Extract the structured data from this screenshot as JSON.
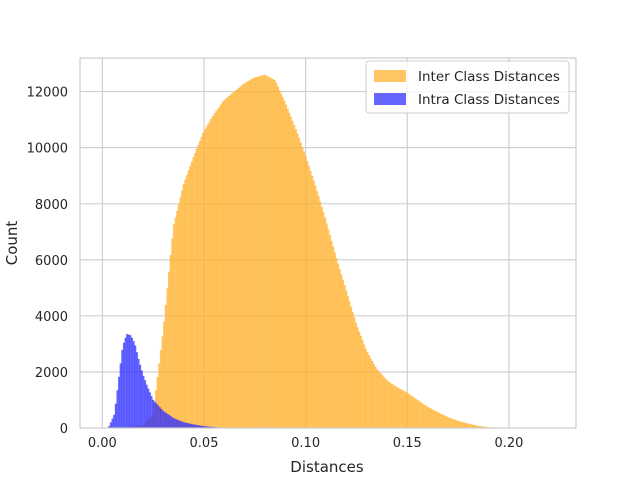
{
  "chart_data": {
    "type": "bar",
    "title": "",
    "xlabel": "Distances",
    "ylabel": "Count",
    "xlim": [
      -0.011,
      0.233
    ],
    "ylim": [
      0,
      13200
    ],
    "xticks": [
      0.0,
      0.05,
      0.1,
      0.15,
      0.2
    ],
    "xtick_labels": [
      "0.00",
      "0.05",
      "0.10",
      "0.15",
      "0.20"
    ],
    "yticks": [
      0,
      2000,
      4000,
      6000,
      8000,
      10000,
      12000
    ],
    "ytick_labels": [
      "0",
      "2000",
      "4000",
      "6000",
      "8000",
      "10000",
      "12000"
    ],
    "grid": true,
    "legend_position": "top-right",
    "series": [
      {
        "name": "Inter Class Distances",
        "color": "#FFB22E",
        "x": [
          0.01,
          0.02,
          0.025,
          0.03,
          0.035,
          0.04,
          0.045,
          0.05,
          0.055,
          0.06,
          0.065,
          0.07,
          0.075,
          0.08,
          0.085,
          0.09,
          0.095,
          0.1,
          0.105,
          0.11,
          0.115,
          0.12,
          0.125,
          0.13,
          0.135,
          0.14,
          0.145,
          0.15,
          0.155,
          0.16,
          0.165,
          0.17,
          0.175,
          0.18,
          0.185,
          0.19,
          0.195
        ],
        "y": [
          0,
          100,
          500,
          3500,
          7200,
          8700,
          9700,
          10600,
          11200,
          11700,
          12000,
          12300,
          12500,
          12600,
          12400,
          11600,
          10700,
          9700,
          8600,
          7400,
          6100,
          4900,
          3700,
          2750,
          2100,
          1700,
          1450,
          1250,
          1000,
          750,
          560,
          380,
          250,
          150,
          70,
          20,
          0
        ]
      },
      {
        "name": "Intra Class Distances",
        "color": "#3333FF",
        "x": [
          0.003,
          0.006,
          0.008,
          0.01,
          0.012,
          0.014,
          0.016,
          0.018,
          0.02,
          0.022,
          0.025,
          0.03,
          0.035,
          0.04,
          0.045,
          0.05,
          0.055,
          0.06
        ],
        "y": [
          0,
          500,
          1700,
          2900,
          3350,
          3300,
          3000,
          2400,
          1900,
          1500,
          1000,
          600,
          350,
          200,
          120,
          60,
          25,
          0
        ]
      }
    ]
  }
}
